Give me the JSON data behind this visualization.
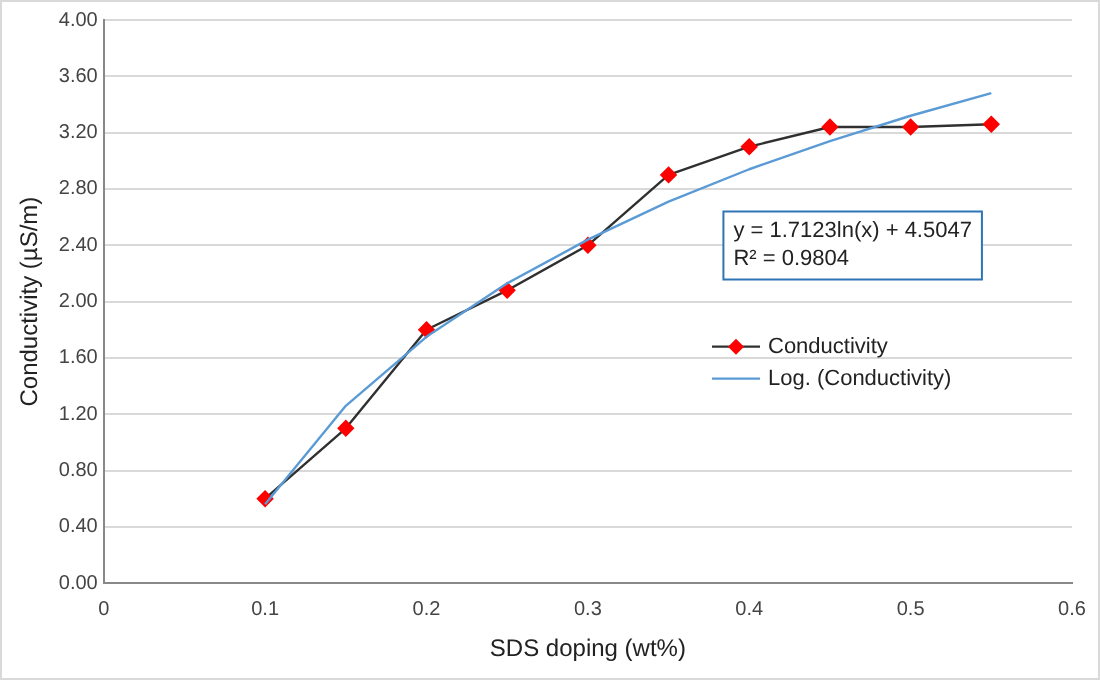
{
  "chart_data": {
    "type": "line",
    "xlabel": "SDS doping (wt%)",
    "ylabel": "Conductivity (µS/m)",
    "xlim": [
      0,
      0.6
    ],
    "xticks": [
      0,
      0.1,
      0.2,
      0.3,
      0.4,
      0.5,
      0.6
    ],
    "ylim": [
      0,
      4
    ],
    "yticks": [
      {
        "value": 0,
        "label": "0.00"
      },
      {
        "value": 0.4,
        "label": "0.40"
      },
      {
        "value": 0.8,
        "label": "0.80"
      },
      {
        "value": 1.2,
        "label": "1.20"
      },
      {
        "value": 1.6,
        "label": "1.60"
      },
      {
        "value": 2,
        "label": "2.00"
      },
      {
        "value": 2.4,
        "label": "2.40"
      },
      {
        "value": 2.8,
        "label": "2.80"
      },
      {
        "value": 3.2,
        "label": "3.20"
      },
      {
        "value": 3.6,
        "label": "3.60"
      },
      {
        "value": 4,
        "label": "4.00"
      }
    ],
    "grid": "y",
    "legend": "right",
    "marker": "diamond",
    "line_style": "solid",
    "annotations": [
      "y = 1.7123ln(x) + 4.5047",
      "R² = 0.9804"
    ],
    "series": [
      {
        "name": "Conductivity",
        "color": "#ff0000",
        "x": [
          0.1,
          0.15,
          0.2,
          0.25,
          0.3,
          0.35,
          0.4,
          0.45,
          0.5,
          0.55
        ],
        "values": [
          0.6,
          1.1,
          1.8,
          2.08,
          2.4,
          2.9,
          3.1,
          3.24,
          3.24,
          3.26
        ]
      },
      {
        "name": "Log. (Conductivity)",
        "color": "#5b9bd5",
        "marker": "none",
        "x": [
          0.1,
          0.15,
          0.2,
          0.25,
          0.3,
          0.35,
          0.4,
          0.45,
          0.5,
          0.55
        ],
        "values": [
          0.56,
          1.26,
          1.75,
          2.13,
          2.44,
          2.71,
          2.94,
          3.14,
          3.32,
          3.48
        ]
      }
    ]
  }
}
